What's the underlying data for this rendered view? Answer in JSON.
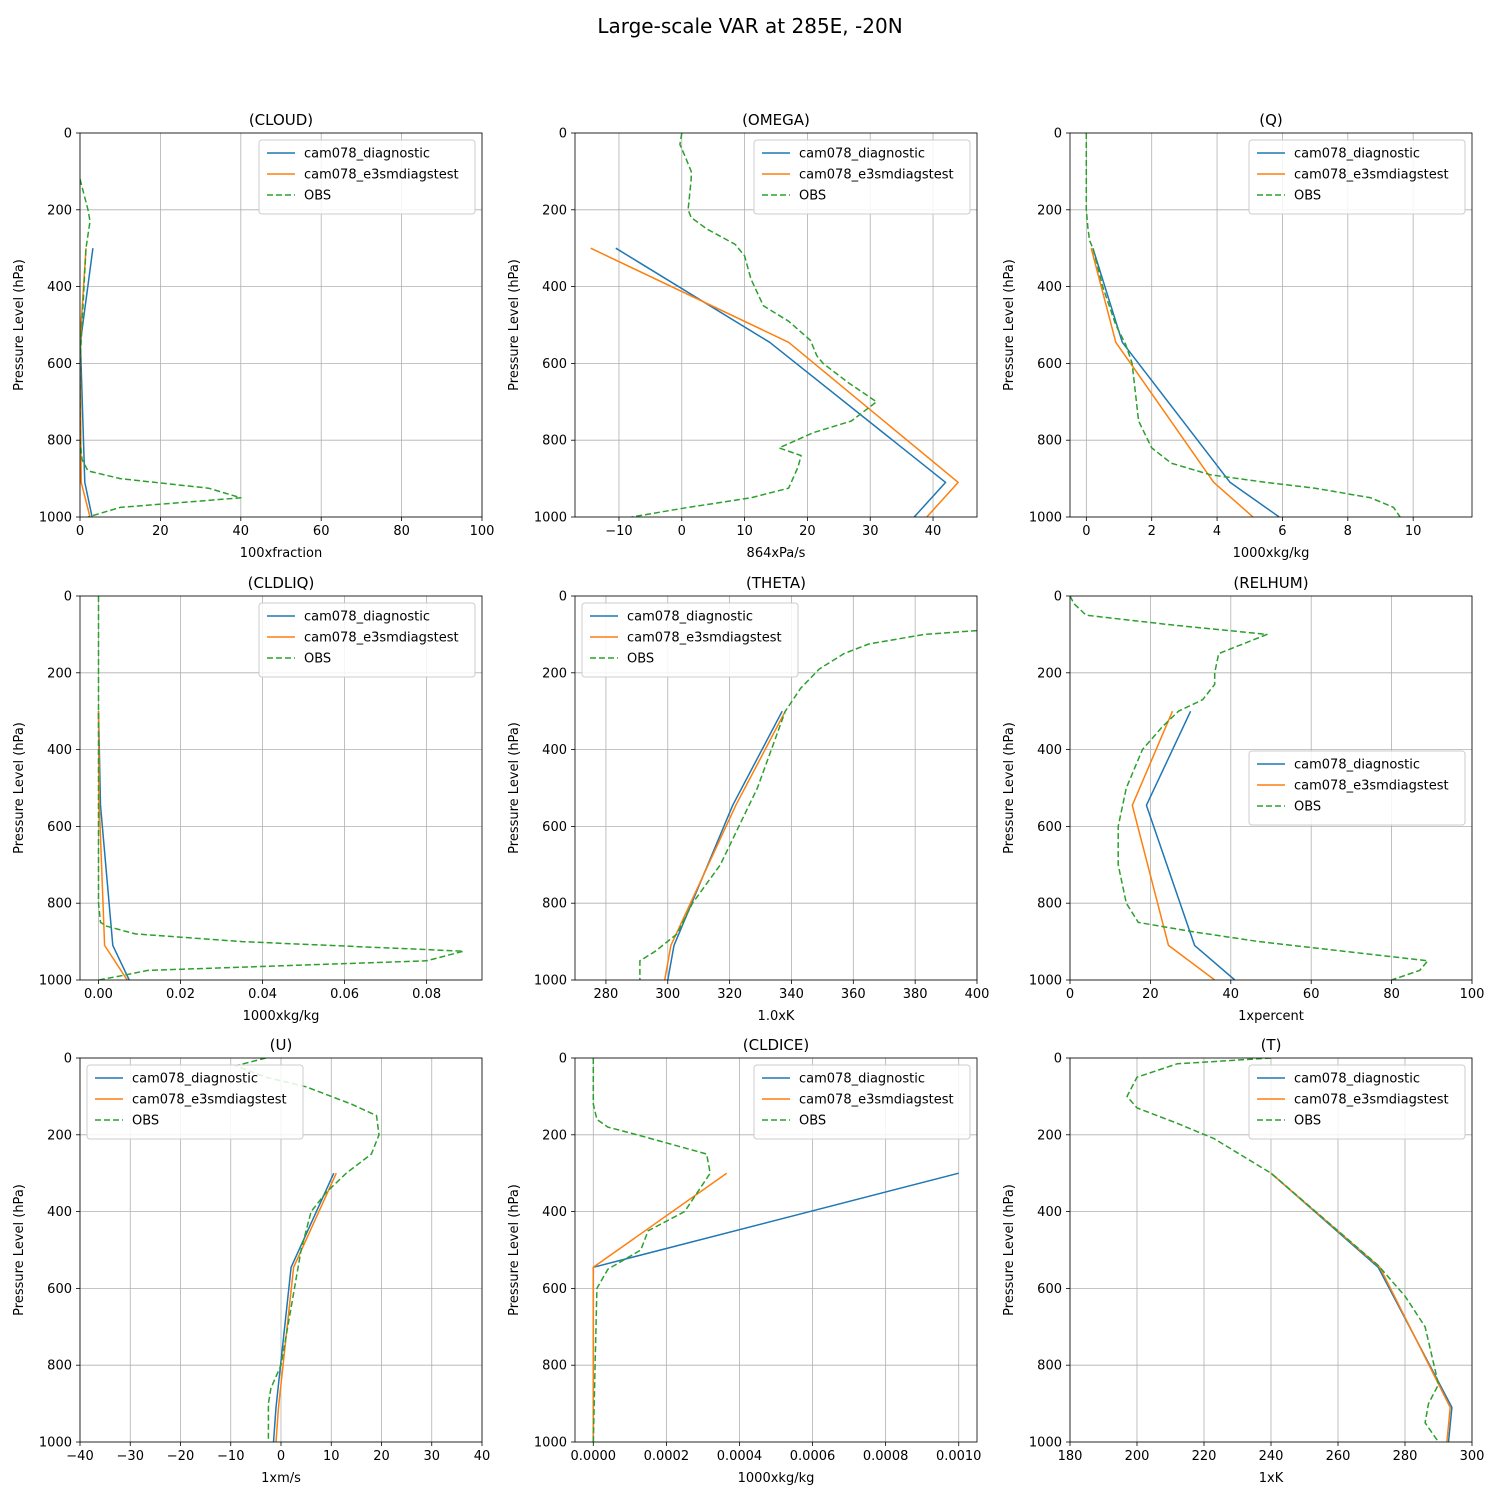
{
  "suptitle": "Large-scale VAR at 285E, -20N",
  "colors": {
    "diagnostic": "#1f77b4",
    "e3smdiagstest": "#ff7f0e",
    "obs": "#2ca02c",
    "grid": "#b0b0b0"
  },
  "chart_data": [
    {
      "type": "line",
      "title": "(CLOUD)",
      "xlabel": "100xfraction",
      "ylabel": "Pressure Level (hPa)",
      "xlim": [
        0,
        100
      ],
      "ylim": [
        1000,
        0
      ],
      "grid": true,
      "legend": "upper right",
      "xticks": [
        0,
        20,
        40,
        60,
        80,
        100
      ],
      "xtick_labels": [
        "0",
        "20",
        "40",
        "60",
        "80",
        "100"
      ],
      "yticks": [
        0,
        200,
        400,
        600,
        800,
        1000
      ],
      "ytick_labels": [
        "0",
        "200",
        "400",
        "600",
        "800",
        "1000"
      ],
      "series": [
        {
          "name": "cam078_diagnostic",
          "color": "#1f77b4",
          "dashed": false,
          "x": [
            3.2,
            0.1,
            1.2,
            3.0
          ],
          "y": [
            300,
            545,
            910,
            1000
          ]
        },
        {
          "name": "cam078_e3smdiagstest",
          "color": "#ff7f0e",
          "dashed": false,
          "x": [
            1.5,
            0,
            0.3,
            2.5
          ],
          "y": [
            300,
            545,
            910,
            1000
          ]
        },
        {
          "name": "OBS",
          "color": "#2ca02c",
          "dashed": true,
          "x": [
            0,
            2,
            2.5,
            1.5,
            1,
            0.5,
            0,
            0,
            0,
            0.5,
            2,
            10,
            32,
            40,
            10,
            2
          ],
          "y": [
            120,
            200,
            230,
            300,
            400,
            500,
            600,
            700,
            800,
            850,
            880,
            900,
            925,
            950,
            975,
            1000
          ]
        }
      ]
    },
    {
      "type": "line",
      "title": "(OMEGA)",
      "xlabel": "864xPa/s",
      "ylabel": "Pressure Level (hPa)",
      "xlim": [
        -17,
        47
      ],
      "ylim": [
        1000,
        0
      ],
      "grid": true,
      "legend": "upper right",
      "xticks": [
        -10,
        0,
        10,
        20,
        30,
        40
      ],
      "xtick_labels": [
        "−10",
        "0",
        "10",
        "20",
        "30",
        "40"
      ],
      "yticks": [
        0,
        200,
        400,
        600,
        800,
        1000
      ],
      "ytick_labels": [
        "0",
        "200",
        "400",
        "600",
        "800",
        "1000"
      ],
      "series": [
        {
          "name": "cam078_diagnostic",
          "color": "#1f77b4",
          "dashed": false,
          "x": [
            -10.5,
            14,
            42,
            37
          ],
          "y": [
            300,
            545,
            910,
            1000
          ]
        },
        {
          "name": "cam078_e3smdiagstest",
          "color": "#ff7f0e",
          "dashed": false,
          "x": [
            -14.5,
            17,
            44,
            39
          ],
          "y": [
            300,
            545,
            910,
            1000
          ]
        },
        {
          "name": "OBS",
          "color": "#2ca02c",
          "dashed": true,
          "x": [
            0,
            -0.3,
            0.5,
            1.5,
            1.5,
            1,
            1.5,
            4,
            8.5,
            10,
            11,
            13,
            17,
            20.5,
            21.5,
            22.5,
            26.5,
            31,
            27,
            21,
            15.5,
            19,
            18.5,
            17,
            11,
            1,
            -8
          ],
          "y": [
            0,
            30,
            60,
            100,
            120,
            200,
            220,
            250,
            290,
            320,
            380,
            450,
            490,
            540,
            580,
            600,
            650,
            700,
            750,
            780,
            820,
            840,
            870,
            925,
            950,
            975,
            1000
          ]
        }
      ]
    },
    {
      "type": "line",
      "title": "(Q)",
      "xlabel": "1000xkg/kg",
      "ylabel": "Pressure Level (hPa)",
      "xlim": [
        -0.5,
        11.8
      ],
      "ylim": [
        1000,
        0
      ],
      "grid": true,
      "legend": "upper right",
      "xticks": [
        0,
        2,
        4,
        6,
        8,
        10
      ],
      "xtick_labels": [
        "0",
        "2",
        "4",
        "6",
        "8",
        "10"
      ],
      "yticks": [
        0,
        200,
        400,
        600,
        800,
        1000
      ],
      "ytick_labels": [
        "0",
        "200",
        "400",
        "600",
        "800",
        "1000"
      ],
      "series": [
        {
          "name": "cam078_diagnostic",
          "color": "#1f77b4",
          "dashed": false,
          "x": [
            0.2,
            1.1,
            4.4,
            5.9
          ],
          "y": [
            300,
            545,
            910,
            1000
          ]
        },
        {
          "name": "cam078_e3smdiagstest",
          "color": "#ff7f0e",
          "dashed": false,
          "x": [
            0.15,
            0.9,
            3.9,
            5.1
          ],
          "y": [
            300,
            545,
            910,
            1000
          ]
        },
        {
          "name": "OBS",
          "color": "#2ca02c",
          "dashed": true,
          "x": [
            0,
            0,
            0,
            0.05,
            0.1,
            0.2,
            0.5,
            0.9,
            1.2,
            1.4,
            1.6,
            2.0,
            2.6,
            3.8,
            5.5,
            7.0,
            8.7,
            9.4,
            9.6
          ],
          "y": [
            0,
            100,
            200,
            250,
            280,
            300,
            400,
            500,
            550,
            600,
            750,
            820,
            860,
            890,
            910,
            925,
            950,
            975,
            1000
          ]
        }
      ]
    },
    {
      "type": "line",
      "title": "(CLDLIQ)",
      "xlabel": "1000xkg/kg",
      "ylabel": "Pressure Level (hPa)",
      "xlim": [
        -0.0045,
        0.0935
      ],
      "ylim": [
        1000,
        0
      ],
      "grid": true,
      "legend": "upper right",
      "xticks": [
        0,
        0.02,
        0.04,
        0.06,
        0.08
      ],
      "xtick_labels": [
        "0.00",
        "0.02",
        "0.04",
        "0.06",
        "0.08"
      ],
      "yticks": [
        0,
        200,
        400,
        600,
        800,
        1000
      ],
      "ytick_labels": [
        "0",
        "200",
        "400",
        "600",
        "800",
        "1000"
      ],
      "series": [
        {
          "name": "cam078_diagnostic",
          "color": "#1f77b4",
          "dashed": false,
          "x": [
            0,
            0.0005,
            0.0035,
            0.0075
          ],
          "y": [
            300,
            545,
            910,
            1000
          ]
        },
        {
          "name": "cam078_e3smdiagstest",
          "color": "#ff7f0e",
          "dashed": false,
          "x": [
            0,
            0.0002,
            0.0015,
            0.007
          ],
          "y": [
            300,
            545,
            910,
            1000
          ]
        },
        {
          "name": "OBS",
          "color": "#2ca02c",
          "dashed": true,
          "x": [
            0,
            0,
            0,
            0,
            0,
            0.0005,
            0.002,
            0.009,
            0.035,
            0.089,
            0.08,
            0.012,
            0.005,
            0
          ],
          "y": [
            0,
            200,
            400,
            600,
            800,
            850,
            860,
            880,
            900,
            925,
            950,
            975,
            990,
            1000
          ]
        }
      ]
    },
    {
      "type": "line",
      "title": "(THETA)",
      "xlabel": "1.0xK",
      "ylabel": "Pressure Level (hPa)",
      "xlim": [
        270,
        400
      ],
      "ylim": [
        1000,
        0
      ],
      "grid": true,
      "legend": "upper left",
      "xticks": [
        280,
        300,
        320,
        340,
        360,
        380,
        400
      ],
      "xtick_labels": [
        "280",
        "300",
        "320",
        "340",
        "360",
        "380",
        "400"
      ],
      "yticks": [
        0,
        200,
        400,
        600,
        800,
        1000
      ],
      "ytick_labels": [
        "0",
        "200",
        "400",
        "600",
        "800",
        "1000"
      ],
      "series": [
        {
          "name": "cam078_diagnostic",
          "color": "#1f77b4",
          "dashed": false,
          "x": [
            337,
            321,
            302,
            300
          ],
          "y": [
            300,
            545,
            910,
            1000
          ]
        },
        {
          "name": "cam078_e3smdiagstest",
          "color": "#ff7f0e",
          "dashed": false,
          "x": [
            338,
            322,
            301,
            299
          ],
          "y": [
            300,
            545,
            910,
            1000
          ]
        },
        {
          "name": "OBS",
          "color": "#2ca02c",
          "dashed": true,
          "x": [
            400,
            383,
            365,
            357,
            349,
            343,
            338,
            329,
            317,
            308,
            303,
            296,
            291,
            291
          ],
          "y": [
            90,
            100,
            125,
            150,
            190,
            240,
            300,
            500,
            700,
            800,
            880,
            925,
            950,
            1000
          ]
        }
      ]
    },
    {
      "type": "line",
      "title": "(RELHUM)",
      "xlabel": "1xpercent",
      "ylabel": "Pressure Level (hPa)",
      "xlim": [
        0,
        100
      ],
      "ylim": [
        1000,
        0
      ],
      "grid": true,
      "legend": "center right",
      "xticks": [
        0,
        20,
        40,
        60,
        80,
        100
      ],
      "xtick_labels": [
        "0",
        "20",
        "40",
        "60",
        "80",
        "100"
      ],
      "yticks": [
        0,
        200,
        400,
        600,
        800,
        1000
      ],
      "ytick_labels": [
        "0",
        "200",
        "400",
        "600",
        "800",
        "1000"
      ],
      "series": [
        {
          "name": "cam078_diagnostic",
          "color": "#1f77b4",
          "dashed": false,
          "x": [
            30,
            19,
            31,
            41
          ],
          "y": [
            300,
            545,
            910,
            1000
          ]
        },
        {
          "name": "cam078_e3smdiagstest",
          "color": "#ff7f0e",
          "dashed": false,
          "x": [
            25.5,
            15.5,
            24.5,
            36
          ],
          "y": [
            300,
            545,
            910,
            1000
          ]
        },
        {
          "name": "OBS",
          "color": "#2ca02c",
          "dashed": true,
          "x": [
            0,
            1,
            4,
            25,
            49,
            37,
            36,
            36,
            33,
            27,
            23,
            18,
            14,
            12,
            12,
            14,
            17,
            31,
            47,
            89,
            87,
            80
          ],
          "y": [
            0,
            20,
            50,
            75,
            100,
            150,
            200,
            230,
            270,
            300,
            340,
            400,
            500,
            600,
            700,
            800,
            850,
            875,
            900,
            950,
            975,
            1000
          ]
        }
      ]
    },
    {
      "type": "line",
      "title": "(U)",
      "xlabel": "1xm/s",
      "ylabel": "Pressure Level (hPa)",
      "xlim": [
        -40,
        40
      ],
      "ylim": [
        1000,
        0
      ],
      "grid": true,
      "legend": "upper left",
      "xticks": [
        -40,
        -30,
        -20,
        -10,
        0,
        10,
        20,
        30,
        40
      ],
      "xtick_labels": [
        "−40",
        "−30",
        "−20",
        "−10",
        "0",
        "10",
        "20",
        "30",
        "40"
      ],
      "yticks": [
        0,
        200,
        400,
        600,
        800,
        1000
      ],
      "ytick_labels": [
        "0",
        "200",
        "400",
        "600",
        "800",
        "1000"
      ],
      "series": [
        {
          "name": "cam078_diagnostic",
          "color": "#1f77b4",
          "dashed": false,
          "x": [
            10.5,
            2,
            -1,
            -1.5
          ],
          "y": [
            300,
            545,
            910,
            1000
          ]
        },
        {
          "name": "cam078_e3smdiagstest",
          "color": "#ff7f0e",
          "dashed": false,
          "x": [
            11,
            2.5,
            -0.5,
            -1
          ],
          "y": [
            300,
            545,
            910,
            1000
          ]
        },
        {
          "name": "OBS",
          "color": "#2ca02c",
          "dashed": true,
          "x": [
            -3,
            -9,
            -7,
            -3,
            5,
            14,
            19,
            19.5,
            18,
            13,
            9,
            6,
            4,
            2,
            0,
            -2,
            -2.5,
            -2.5
          ],
          "y": [
            0,
            20,
            30,
            50,
            75,
            120,
            150,
            200,
            250,
            300,
            350,
            400,
            500,
            650,
            800,
            860,
            900,
            1000
          ]
        }
      ]
    },
    {
      "type": "line",
      "title": "(CLDICE)",
      "xlabel": "1000xkg/kg",
      "ylabel": "Pressure Level (hPa)",
      "xlim": [
        -5e-05,
        0.00105
      ],
      "ylim": [
        1000,
        0
      ],
      "grid": true,
      "legend": "upper right",
      "xticks": [
        0,
        0.0002,
        0.0004,
        0.0006,
        0.0008,
        0.001
      ],
      "xtick_labels": [
        "0.0000",
        "0.0002",
        "0.0004",
        "0.0006",
        "0.0008",
        "0.0010"
      ],
      "yticks": [
        0,
        200,
        400,
        600,
        800,
        1000
      ],
      "ytick_labels": [
        "0",
        "200",
        "400",
        "600",
        "800",
        "1000"
      ],
      "series": [
        {
          "name": "cam078_diagnostic",
          "color": "#1f77b4",
          "dashed": false,
          "x": [
            0.001,
            0,
            0,
            0
          ],
          "y": [
            300,
            545,
            910,
            1000
          ]
        },
        {
          "name": "cam078_e3smdiagstest",
          "color": "#ff7f0e",
          "dashed": false,
          "x": [
            0.000365,
            0,
            0,
            0
          ],
          "y": [
            300,
            545,
            910,
            1000
          ]
        },
        {
          "name": "OBS",
          "color": "#2ca02c",
          "dashed": true,
          "x": [
            0,
            0,
            1e-05,
            4e-05,
            0.00012,
            0.00031,
            0.00032,
            0.00025,
            0.00015,
            0.00013,
            4e-05,
            1e-05,
            0
          ],
          "y": [
            0,
            120,
            160,
            180,
            200,
            250,
            300,
            400,
            450,
            500,
            550,
            600,
            1000
          ]
        }
      ]
    },
    {
      "type": "line",
      "title": "(T)",
      "xlabel": "1xK",
      "ylabel": "Pressure Level (hPa)",
      "xlim": [
        180,
        300
      ],
      "ylim": [
        1000,
        0
      ],
      "grid": true,
      "legend": "upper right",
      "xticks": [
        180,
        200,
        220,
        240,
        260,
        280,
        300
      ],
      "xtick_labels": [
        "180",
        "200",
        "220",
        "240",
        "260",
        "280",
        "300"
      ],
      "yticks": [
        0,
        200,
        400,
        600,
        800,
        1000
      ],
      "ytick_labels": [
        "0",
        "200",
        "400",
        "600",
        "800",
        "1000"
      ],
      "series": [
        {
          "name": "cam078_diagnostic",
          "color": "#1f77b4",
          "dashed": false,
          "x": [
            240,
            272,
            294,
            293
          ],
          "y": [
            300,
            545,
            910,
            1000
          ]
        },
        {
          "name": "cam078_e3smdiagstest",
          "color": "#ff7f0e",
          "dashed": false,
          "x": [
            240,
            272.5,
            293.5,
            292.5
          ],
          "y": [
            300,
            545,
            910,
            1000
          ]
        },
        {
          "name": "OBS",
          "color": "#2ca02c",
          "dashed": true,
          "x": [
            240,
            212,
            200,
            197,
            200,
            212,
            223,
            240,
            256,
            272,
            280,
            286,
            290,
            287,
            286,
            290
          ],
          "y": [
            0,
            15,
            50,
            100,
            130,
            170,
            210,
            300,
            420,
            540,
            620,
            700,
            850,
            900,
            950,
            1000
          ]
        }
      ]
    }
  ]
}
